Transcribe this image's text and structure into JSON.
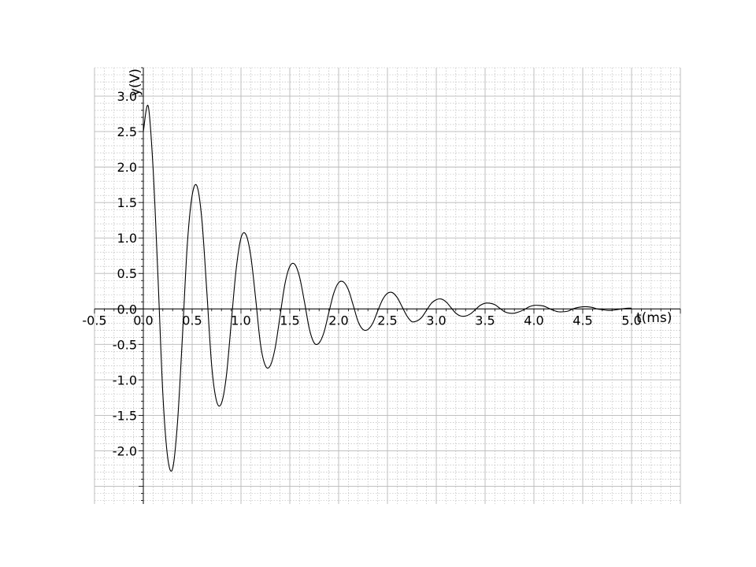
{
  "chart_data": {
    "type": "line",
    "title": "",
    "xlabel": "t(ms)",
    "ylabel": "y(V)",
    "xlim": [
      -0.5,
      5.5
    ],
    "ylim": [
      -2.75,
      3.4
    ],
    "grid": true,
    "minor_grid": true,
    "x_ticks": [
      "-0.5",
      "0.0",
      "0.5",
      "1.0",
      "1.5",
      "2.0",
      "2.5",
      "3.0",
      "3.5",
      "4.0",
      "4.5",
      "5.0"
    ],
    "y_ticks": [
      "3.0",
      "2.5",
      "2.0",
      "1.5",
      "1.0",
      "0.5",
      "0.0",
      "-0.5",
      "-1.0",
      "-1.5",
      "-2.0"
    ],
    "series": [
      {
        "name": "",
        "color": "#000000",
        "x": [
          0.0,
          0.05,
          0.1,
          0.15,
          0.2,
          0.25,
          0.3,
          0.35,
          0.4,
          0.45,
          0.5,
          0.55,
          0.6,
          0.65,
          0.7,
          0.75,
          0.8,
          0.85,
          0.9,
          0.95,
          1.0,
          1.05,
          1.1,
          1.15,
          1.2,
          1.25,
          1.3,
          1.35,
          1.4,
          1.45,
          1.5,
          1.55,
          1.6,
          1.65,
          1.7,
          1.75,
          1.8,
          1.85,
          1.9,
          1.95,
          2.0,
          2.05,
          2.1,
          2.15,
          2.2,
          2.25,
          2.3,
          2.35,
          2.4,
          2.45,
          2.5,
          2.55,
          2.6,
          2.65,
          2.7,
          2.75,
          2.8,
          2.85,
          2.9,
          2.95,
          3.0,
          3.05,
          3.1,
          3.15,
          3.2,
          3.25,
          3.3,
          3.35,
          3.4,
          3.45,
          3.5,
          3.55,
          3.6,
          3.65,
          3.7,
          3.75,
          3.8,
          3.85,
          3.9,
          3.95,
          4.0,
          4.05,
          4.1,
          4.15,
          4.2,
          4.25,
          4.3,
          4.35,
          4.4,
          4.45,
          4.5,
          4.55,
          4.6,
          4.65,
          4.7,
          4.75,
          4.8,
          4.85,
          4.9,
          4.95,
          5.0
        ],
        "y": [
          2.5,
          2.86,
          1.98,
          0.45,
          -1.2,
          -2.1,
          -2.25,
          -1.6,
          -0.4,
          0.9,
          1.6,
          1.73,
          1.25,
          0.25,
          -0.8,
          -1.3,
          -1.33,
          -0.95,
          -0.2,
          0.55,
          1.0,
          1.05,
          0.75,
          0.15,
          -0.5,
          -0.8,
          -0.8,
          -0.55,
          -0.1,
          0.35,
          0.6,
          0.63,
          0.45,
          0.1,
          -0.28,
          -0.48,
          -0.48,
          -0.33,
          -0.05,
          0.22,
          0.37,
          0.38,
          0.27,
          0.05,
          -0.18,
          -0.29,
          -0.29,
          -0.2,
          -0.03,
          0.13,
          0.22,
          0.23,
          0.16,
          0.03,
          -0.1,
          -0.18,
          -0.17,
          -0.12,
          -0.02,
          0.08,
          0.13,
          0.14,
          0.1,
          0.02,
          -0.06,
          -0.1,
          -0.1,
          -0.07,
          -0.01,
          0.05,
          0.08,
          0.08,
          0.06,
          0.01,
          -0.04,
          -0.06,
          -0.06,
          -0.04,
          -0.01,
          0.03,
          0.05,
          0.05,
          0.04,
          0.01,
          -0.02,
          -0.04,
          -0.04,
          -0.03,
          0.0,
          0.02,
          0.03,
          0.03,
          0.02,
          0.0,
          -0.01,
          -0.02,
          -0.02,
          -0.01,
          0.0,
          0.01,
          0.01
        ]
      }
    ]
  }
}
